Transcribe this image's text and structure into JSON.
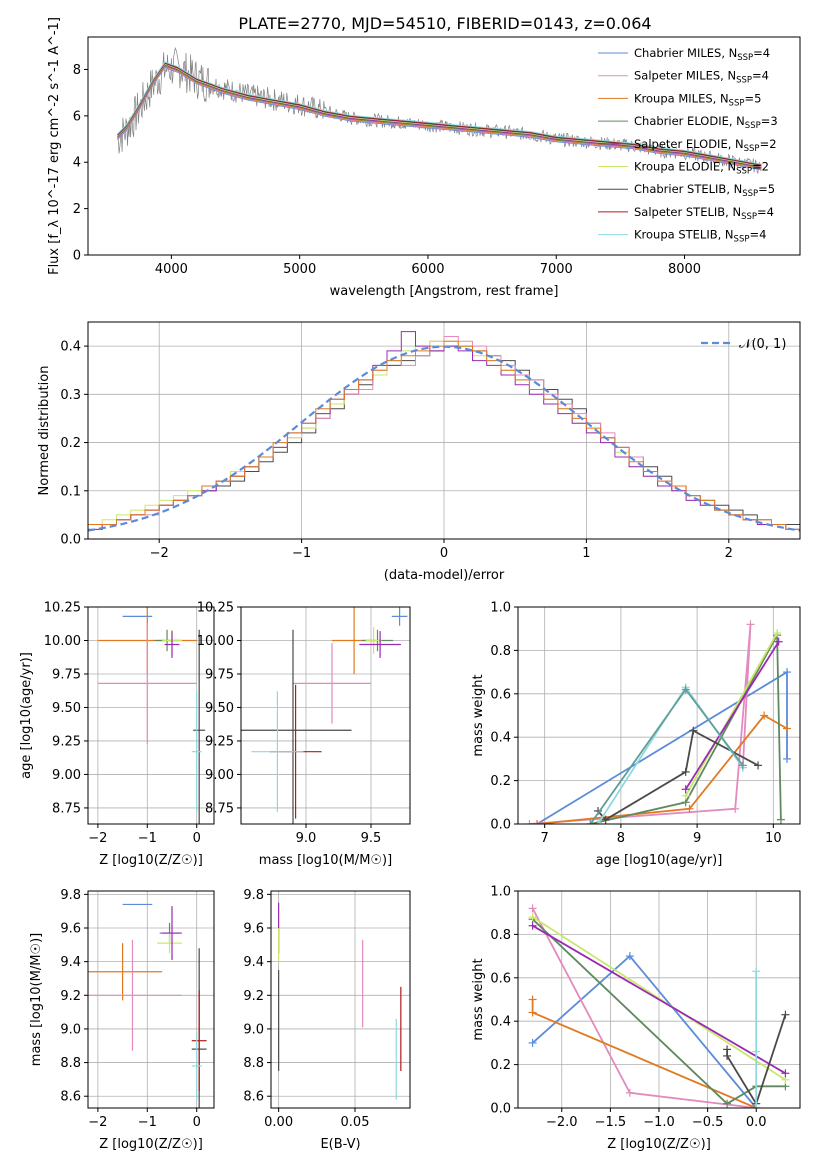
{
  "figure": {
    "title": "PLATE=2770, MJD=54510, FIBERID=0143, z=0.064"
  },
  "chart_data": [
    {
      "id": "spectrum",
      "type": "line",
      "title": "PLATE=2770, MJD=54510, FIBERID=0143, z=0.064",
      "xlabel": "wavelength [Angstrom, rest frame]",
      "ylabel": "Flux [f_λ 10^-17 erg cm^-2 s^-1 A^-1]",
      "xlim": [
        3350,
        8900
      ],
      "ylim": [
        0,
        9.4
      ],
      "xticks": [
        4000,
        5000,
        6000,
        7000,
        8000
      ],
      "yticks": [
        0,
        2,
        4,
        6,
        8
      ],
      "legend_position": "top-right",
      "data_curve": {
        "color": "#808080",
        "x": [
          3580,
          3650,
          3750,
          3850,
          3950,
          4050,
          4200,
          4400,
          4600,
          4800,
          5000,
          5200,
          5400,
          5600,
          5800,
          6000,
          6200,
          6400,
          6600,
          6800,
          7000,
          7200,
          7400,
          7600,
          7800,
          8000,
          8200,
          8400,
          8600
        ],
        "y": [
          5.0,
          5.4,
          6.3,
          7.3,
          8.0,
          8.1,
          7.6,
          7.2,
          6.9,
          6.7,
          6.5,
          6.2,
          5.9,
          5.8,
          5.7,
          5.6,
          5.5,
          5.4,
          5.3,
          5.2,
          5.0,
          4.9,
          4.8,
          4.7,
          4.5,
          4.4,
          4.2,
          4.0,
          3.8
        ]
      },
      "series": [
        {
          "name": "Chabrier MILES",
          "n_ssp": "4",
          "color": "#5b8bd9"
        },
        {
          "name": "Salpeter MILES",
          "n_ssp": "4",
          "color": "#e38abf"
        },
        {
          "name": "Kroupa MILES",
          "n_ssp": "5",
          "color": "#e07a22"
        },
        {
          "name": "Chabrier ELODIE",
          "n_ssp": "3",
          "color": "#5f8a5f"
        },
        {
          "name": "Salpeter ELODIE",
          "n_ssp": "2",
          "color": "#9a2ab3"
        },
        {
          "name": "Kroupa ELODIE",
          "n_ssp": "2",
          "color": "#c9e86a"
        },
        {
          "name": "Chabrier STELIB",
          "n_ssp": "5",
          "color": "#4a4a4a"
        },
        {
          "name": "Salpeter STELIB",
          "n_ssp": "4",
          "color": "#b01c1c"
        },
        {
          "name": "Kroupa STELIB",
          "n_ssp": "4",
          "color": "#8fd8e0"
        }
      ],
      "model_curve": {
        "x": [
          3580,
          3650,
          3750,
          3850,
          3950,
          4050,
          4200,
          4400,
          4600,
          4800,
          5000,
          5200,
          5400,
          5600,
          5800,
          6000,
          6200,
          6400,
          6600,
          6800,
          7000,
          7200,
          7400,
          7600,
          7800,
          8000,
          8200,
          8400,
          8600
        ],
        "y": [
          5.1,
          5.5,
          6.4,
          7.4,
          8.2,
          8.0,
          7.5,
          7.1,
          6.8,
          6.6,
          6.4,
          6.1,
          5.9,
          5.8,
          5.7,
          5.6,
          5.5,
          5.4,
          5.3,
          5.2,
          5.0,
          4.9,
          4.8,
          4.7,
          4.5,
          4.4,
          4.2,
          4.0,
          3.8
        ]
      }
    },
    {
      "id": "residuals",
      "type": "line",
      "xlabel": "(data-model)/error",
      "ylabel": "Normed distribution",
      "xlim": [
        -2.5,
        2.5
      ],
      "ylim": [
        0,
        0.45
      ],
      "xticks": [
        -2,
        -1,
        0,
        1,
        2
      ],
      "yticks": [
        0.0,
        0.1,
        0.2,
        0.3,
        0.4
      ],
      "gaussian_label": "𝒩(0, 1)",
      "gaussian_color": "#5b8bd9",
      "bins_start": -2.5,
      "bin_width": 0.1,
      "histograms": [
        {
          "color": "#4a4a4a",
          "values": [
            0.03,
            0.03,
            0.04,
            0.05,
            0.06,
            0.07,
            0.08,
            0.09,
            0.1,
            0.11,
            0.12,
            0.14,
            0.16,
            0.18,
            0.2,
            0.22,
            0.25,
            0.27,
            0.3,
            0.32,
            0.34,
            0.36,
            0.37,
            0.38,
            0.39,
            0.4,
            0.4,
            0.39,
            0.38,
            0.37,
            0.35,
            0.33,
            0.31,
            0.29,
            0.27,
            0.24,
            0.21,
            0.19,
            0.17,
            0.15,
            0.13,
            0.11,
            0.09,
            0.08,
            0.07,
            0.06,
            0.05,
            0.04,
            0.03,
            0.03
          ]
        },
        {
          "color": "#e38abf",
          "values": [
            0.02,
            0.03,
            0.04,
            0.05,
            0.05,
            0.07,
            0.08,
            0.09,
            0.11,
            0.12,
            0.13,
            0.15,
            0.17,
            0.19,
            0.21,
            0.23,
            0.25,
            0.28,
            0.3,
            0.31,
            0.35,
            0.37,
            0.36,
            0.38,
            0.41,
            0.42,
            0.41,
            0.4,
            0.38,
            0.36,
            0.34,
            0.33,
            0.3,
            0.28,
            0.26,
            0.24,
            0.22,
            0.19,
            0.17,
            0.14,
            0.12,
            0.1,
            0.09,
            0.08,
            0.06,
            0.05,
            0.04,
            0.04,
            0.03,
            0.02
          ]
        },
        {
          "color": "#c9e86a",
          "values": [
            0.03,
            0.04,
            0.05,
            0.06,
            0.07,
            0.08,
            0.09,
            0.1,
            0.11,
            0.12,
            0.14,
            0.15,
            0.17,
            0.19,
            0.21,
            0.23,
            0.26,
            0.28,
            0.31,
            0.33,
            0.34,
            0.37,
            0.39,
            0.4,
            0.41,
            0.41,
            0.4,
            0.38,
            0.37,
            0.35,
            0.33,
            0.31,
            0.29,
            0.27,
            0.24,
            0.22,
            0.2,
            0.18,
            0.15,
            0.13,
            0.11,
            0.1,
            0.08,
            0.07,
            0.06,
            0.05,
            0.04,
            0.04,
            0.03,
            0.02
          ]
        },
        {
          "color": "#9a2ab3",
          "values": [
            0.02,
            0.03,
            0.04,
            0.05,
            0.06,
            0.07,
            0.08,
            0.09,
            0.1,
            0.12,
            0.13,
            0.15,
            0.17,
            0.19,
            0.22,
            0.24,
            0.26,
            0.29,
            0.31,
            0.33,
            0.36,
            0.39,
            0.43,
            0.4,
            0.39,
            0.4,
            0.39,
            0.37,
            0.36,
            0.34,
            0.32,
            0.3,
            0.28,
            0.26,
            0.24,
            0.22,
            0.2,
            0.17,
            0.15,
            0.13,
            0.11,
            0.1,
            0.08,
            0.07,
            0.06,
            0.05,
            0.04,
            0.03,
            0.03,
            0.02
          ]
        },
        {
          "color": "#e07a22",
          "values": [
            0.03,
            0.03,
            0.04,
            0.05,
            0.06,
            0.07,
            0.08,
            0.09,
            0.11,
            0.12,
            0.13,
            0.15,
            0.17,
            0.2,
            0.22,
            0.24,
            0.27,
            0.29,
            0.31,
            0.33,
            0.35,
            0.37,
            0.38,
            0.39,
            0.4,
            0.41,
            0.4,
            0.39,
            0.37,
            0.35,
            0.33,
            0.31,
            0.29,
            0.27,
            0.25,
            0.23,
            0.21,
            0.19,
            0.16,
            0.14,
            0.12,
            0.11,
            0.09,
            0.08,
            0.06,
            0.05,
            0.04,
            0.04,
            0.03,
            0.02
          ]
        }
      ]
    },
    {
      "id": "age-vs-Z",
      "type": "scatter",
      "xlabel": "Z [log10(Z/Z☉)]",
      "ylabel": "age  [log10(age/yr)]",
      "xlim": [
        -2.2,
        0.35
      ],
      "ylim": [
        8.63,
        10.25
      ],
      "xticks": [
        -2,
        -1,
        0
      ],
      "yticks": [
        8.75,
        9.0,
        9.25,
        9.5,
        9.75,
        10.0,
        10.25
      ],
      "points": [
        {
          "x": -1.2,
          "y": 10.18,
          "xerr": 0.3,
          "yerr": 0.0,
          "color": "#5b8bd9"
        },
        {
          "x": -1.0,
          "y": 10.0,
          "xerr": 1.0,
          "yerr": 0.25,
          "color": "#e07a22"
        },
        {
          "x": -1.0,
          "y": 9.68,
          "xerr": 1.0,
          "yerr": 0.45,
          "color": "#e38abf"
        },
        {
          "x": -0.6,
          "y": 10.0,
          "xerr": 0.25,
          "yerr": 0.08,
          "color": "#5f8a5f"
        },
        {
          "x": -0.5,
          "y": 10.0,
          "xerr": 0.2,
          "yerr": 0.08,
          "color": "#c9e86a"
        },
        {
          "x": -0.5,
          "y": 9.97,
          "xerr": 0.15,
          "yerr": 0.1,
          "color": "#9a2ab3"
        },
        {
          "x": 0.05,
          "y": 9.33,
          "xerr": 0.12,
          "yerr": 0.75,
          "color": "#4a4a4a"
        },
        {
          "x": 0.0,
          "y": 9.17,
          "xerr": 0.1,
          "yerr": 0.45,
          "color": "#8fd8e0"
        }
      ]
    },
    {
      "id": "age-vs-mass",
      "type": "scatter",
      "xlabel": "mass [log10(M/M☉)]",
      "ylabel": "",
      "xlim": [
        8.5,
        9.8
      ],
      "ylim": [
        8.63,
        10.25
      ],
      "xticks": [
        9.0,
        9.5
      ],
      "yticks": [
        8.75,
        9.0,
        9.25,
        9.5,
        9.75,
        10.0,
        10.25
      ],
      "points": [
        {
          "x": 9.72,
          "y": 10.18,
          "xerr": 0.06,
          "yerr": 0.07,
          "color": "#5b8bd9"
        },
        {
          "x": 9.37,
          "y": 10.0,
          "xerr": 0.17,
          "yerr": 0.25,
          "color": "#e07a22"
        },
        {
          "x": 9.2,
          "y": 9.68,
          "xerr": 0.3,
          "yerr": 0.3,
          "color": "#e38abf"
        },
        {
          "x": 9.55,
          "y": 10.0,
          "xerr": 0.12,
          "yerr": 0.08,
          "color": "#5f8a5f"
        },
        {
          "x": 9.52,
          "y": 10.0,
          "xerr": 0.06,
          "yerr": 0.1,
          "color": "#c9e86a"
        },
        {
          "x": 9.57,
          "y": 9.97,
          "xerr": 0.16,
          "yerr": 0.1,
          "color": "#9a2ab3"
        },
        {
          "x": 8.9,
          "y": 9.33,
          "xerr": 0.45,
          "yerr": 0.75,
          "color": "#4a4a4a"
        },
        {
          "x": 8.92,
          "y": 9.17,
          "xerr": 0.2,
          "yerr": 0.5,
          "color": "#b01c1c"
        },
        {
          "x": 8.78,
          "y": 9.17,
          "xerr": 0.2,
          "yerr": 0.45,
          "color": "#8fd8e0"
        }
      ]
    },
    {
      "id": "weight-vs-age",
      "type": "line",
      "xlabel": "age  [log10(age/yr)]",
      "ylabel": "mass weight",
      "xlim": [
        6.65,
        10.35
      ],
      "ylim": [
        0,
        1.0
      ],
      "xticks": [
        7,
        8,
        9,
        10
      ],
      "yticks": [
        0.0,
        0.2,
        0.4,
        0.6,
        0.8,
        1.0
      ],
      "series": [
        {
          "color": "#5b8bd9",
          "x": [
            6.9,
            10.18,
            10.18
          ],
          "y": [
            0.0,
            0.7,
            0.3
          ]
        },
        {
          "color": "#e38abf",
          "x": [
            6.8,
            9.5,
            9.7,
            9.6
          ],
          "y": [
            0.0,
            0.07,
            0.92,
            0.26
          ]
        },
        {
          "color": "#e07a22",
          "x": [
            6.9,
            8.9,
            9.88,
            10.18
          ],
          "y": [
            0.0,
            0.07,
            0.5,
            0.44
          ]
        },
        {
          "color": "#5f8a5f",
          "x": [
            7.6,
            8.85,
            10.05,
            10.1
          ],
          "y": [
            0.0,
            0.1,
            0.87,
            0.02
          ]
        },
        {
          "color": "#c9e86a",
          "x": [
            8.85,
            10.05
          ],
          "y": [
            0.13,
            0.88
          ]
        },
        {
          "color": "#9a2ab3",
          "x": [
            8.85,
            10.07
          ],
          "y": [
            0.16,
            0.84
          ]
        },
        {
          "color": "#4a4a4a",
          "x": [
            7.7,
            7.8,
            8.85,
            8.95,
            9.8
          ],
          "y": [
            0.06,
            0.02,
            0.24,
            0.43,
            0.27
          ]
        },
        {
          "color": "#8fd8e0",
          "x": [
            7.7,
            8.85,
            9.6
          ],
          "y": [
            0.0,
            0.63,
            0.26
          ]
        },
        {
          "color": "#5f9e9a",
          "x": [
            7.6,
            8.85,
            9.6
          ],
          "y": [
            0.0,
            0.62,
            0.27
          ]
        }
      ]
    },
    {
      "id": "mass-vs-Z",
      "type": "scatter",
      "xlabel": "Z [log10(Z/Z☉)]",
      "ylabel": "mass [log10(M/M☉)]",
      "xlim": [
        -2.2,
        0.35
      ],
      "ylim": [
        8.53,
        9.82
      ],
      "xticks": [
        -2,
        -1,
        0
      ],
      "yticks": [
        8.6,
        8.8,
        9.0,
        9.2,
        9.4,
        9.6,
        9.8
      ],
      "points": [
        {
          "x": -1.2,
          "y": 9.74,
          "xerr": 0.3,
          "yerr": 0.0,
          "color": "#5b8bd9"
        },
        {
          "x": -1.5,
          "y": 9.34,
          "xerr": 0.8,
          "yerr": 0.17,
          "color": "#e07a22"
        },
        {
          "x": -1.3,
          "y": 9.2,
          "xerr": 1.0,
          "yerr": 0.33,
          "color": "#e38abf"
        },
        {
          "x": -0.55,
          "y": 9.57,
          "xerr": 0.2,
          "yerr": 0.06,
          "color": "#5f8a5f"
        },
        {
          "x": -0.55,
          "y": 9.51,
          "xerr": 0.25,
          "yerr": 0.06,
          "color": "#c9e86a"
        },
        {
          "x": -0.5,
          "y": 9.57,
          "xerr": 0.2,
          "yerr": 0.16,
          "color": "#9a2ab3"
        },
        {
          "x": 0.05,
          "y": 8.88,
          "xerr": 0.15,
          "yerr": 0.6,
          "color": "#4a4a4a"
        },
        {
          "x": 0.05,
          "y": 8.93,
          "xerr": 0.15,
          "yerr": 0.3,
          "color": "#b01c1c"
        },
        {
          "x": 0.0,
          "y": 8.78,
          "xerr": 0.1,
          "yerr": 0.2,
          "color": "#8fd8e0"
        }
      ]
    },
    {
      "id": "mass-vs-EBV",
      "type": "scatter",
      "xlabel": "E(B-V)",
      "ylabel": "",
      "xlim": [
        -0.005,
        0.086
      ],
      "ylim": [
        8.53,
        9.82
      ],
      "xticks": [
        0.0,
        0.05
      ],
      "yticks": [
        8.6,
        8.8,
        9.0,
        9.2,
        9.4,
        9.6,
        9.8
      ],
      "points": [
        {
          "x": 0.0,
          "y": 9.6,
          "xerr": 0.0,
          "yerr": 0.15,
          "color": "#9a2ab3"
        },
        {
          "x": 0.0,
          "y": 9.5,
          "xerr": 0.0,
          "yerr": 0.1,
          "color": "#c9e86a"
        },
        {
          "x": 0.0,
          "y": 9.05,
          "xerr": 0.0,
          "yerr": 0.3,
          "color": "#4a4a4a"
        },
        {
          "x": 0.055,
          "y": 9.27,
          "xerr": 0.0,
          "yerr": 0.26,
          "color": "#e38abf"
        },
        {
          "x": 0.08,
          "y": 9.0,
          "xerr": 0.0,
          "yerr": 0.25,
          "color": "#b01c1c"
        },
        {
          "x": 0.077,
          "y": 8.82,
          "xerr": 0.0,
          "yerr": 0.24,
          "color": "#8fd8e0"
        }
      ]
    },
    {
      "id": "weight-vs-Z",
      "type": "line",
      "xlabel": "Z [log10(Z/Z☉)]",
      "ylabel": "mass weight",
      "xlim": [
        -2.45,
        0.45
      ],
      "ylim": [
        0,
        1.0
      ],
      "xticks": [
        -2.0,
        -1.5,
        -1.0,
        -0.5,
        0.0
      ],
      "yticks": [
        0.0,
        0.2,
        0.4,
        0.6,
        0.8,
        1.0
      ],
      "series": [
        {
          "color": "#5b8bd9",
          "x": [
            -2.3,
            -1.3,
            0.0
          ],
          "y": [
            0.3,
            0.7,
            0.0
          ]
        },
        {
          "color": "#e38abf",
          "x": [
            -2.3,
            -1.3,
            0.0
          ],
          "y": [
            0.92,
            0.07,
            0.0
          ]
        },
        {
          "color": "#e07a22",
          "x": [
            -2.3,
            -2.3,
            0.0
          ],
          "y": [
            0.5,
            0.44,
            0.0
          ]
        },
        {
          "color": "#5f8a5f",
          "x": [
            -2.3,
            -0.3,
            0.0,
            0.3
          ],
          "y": [
            0.87,
            0.02,
            0.1,
            0.1
          ]
        },
        {
          "color": "#c9e86a",
          "x": [
            -2.3,
            0.3
          ],
          "y": [
            0.88,
            0.13
          ]
        },
        {
          "color": "#9a2ab3",
          "x": [
            -2.3,
            0.3
          ],
          "y": [
            0.84,
            0.16
          ]
        },
        {
          "color": "#4a4a4a",
          "x": [
            -0.3,
            -0.3,
            0.0,
            0.3
          ],
          "y": [
            0.27,
            0.24,
            0.02,
            0.43
          ]
        },
        {
          "color": "#8fd8e0",
          "x": [
            0.0,
            0.0,
            0.0
          ],
          "y": [
            0.63,
            0.26,
            0.0
          ]
        }
      ]
    }
  ]
}
